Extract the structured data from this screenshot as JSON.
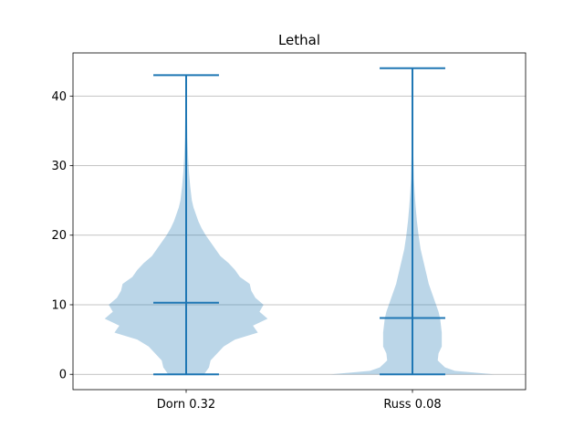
{
  "chart_data": {
    "type": "violin",
    "title": "Lethal",
    "xlabel": "",
    "ylabel": "",
    "categories": [
      "Dorn 0.32",
      "Russ 0.08"
    ],
    "ylim": [
      -2.2,
      46.2
    ],
    "yticks": [
      0,
      10,
      20,
      30,
      40
    ],
    "grid": "y",
    "colors": {
      "body": "#1f77b4",
      "body_alpha": 0.3,
      "lines": "#1f77b4"
    },
    "series": [
      {
        "min": 0,
        "max": 43,
        "mean": 10.3,
        "density": [
          [
            0,
            0.22
          ],
          [
            1,
            0.28
          ],
          [
            2,
            0.3
          ],
          [
            3,
            0.38
          ],
          [
            4,
            0.46
          ],
          [
            5,
            0.6
          ],
          [
            6,
            0.88
          ],
          [
            7,
            0.82
          ],
          [
            8,
            1.0
          ],
          [
            9,
            0.9
          ],
          [
            10,
            0.95
          ],
          [
            11,
            0.85
          ],
          [
            12,
            0.8
          ],
          [
            13,
            0.78
          ],
          [
            14,
            0.66
          ],
          [
            15,
            0.6
          ],
          [
            16,
            0.52
          ],
          [
            17,
            0.42
          ],
          [
            18,
            0.36
          ],
          [
            19,
            0.3
          ],
          [
            20,
            0.24
          ],
          [
            21,
            0.19
          ],
          [
            22,
            0.15
          ],
          [
            23,
            0.12
          ],
          [
            24,
            0.09
          ],
          [
            25,
            0.07
          ],
          [
            27,
            0.05
          ],
          [
            29,
            0.035
          ],
          [
            31,
            0.025
          ],
          [
            34,
            0.015
          ],
          [
            38,
            0.01
          ],
          [
            43,
            0.004
          ]
        ]
      },
      {
        "min": 0,
        "max": 44,
        "mean": 8.1,
        "density": [
          [
            0,
            1.0
          ],
          [
            0.5,
            0.52
          ],
          [
            1,
            0.4
          ],
          [
            2,
            0.31
          ],
          [
            3,
            0.32
          ],
          [
            4,
            0.36
          ],
          [
            5,
            0.36
          ],
          [
            6,
            0.36
          ],
          [
            7,
            0.35
          ],
          [
            8,
            0.34
          ],
          [
            9,
            0.32
          ],
          [
            10,
            0.29
          ],
          [
            11,
            0.26
          ],
          [
            12,
            0.23
          ],
          [
            13,
            0.2
          ],
          [
            14,
            0.18
          ],
          [
            15,
            0.16
          ],
          [
            16,
            0.14
          ],
          [
            17,
            0.12
          ],
          [
            18,
            0.1
          ],
          [
            20,
            0.075
          ],
          [
            22,
            0.055
          ],
          [
            24,
            0.04
          ],
          [
            26,
            0.028
          ],
          [
            28,
            0.018
          ],
          [
            31,
            0.012
          ],
          [
            35,
            0.007
          ],
          [
            40,
            0.004
          ],
          [
            44,
            0.002
          ]
        ]
      }
    ]
  }
}
